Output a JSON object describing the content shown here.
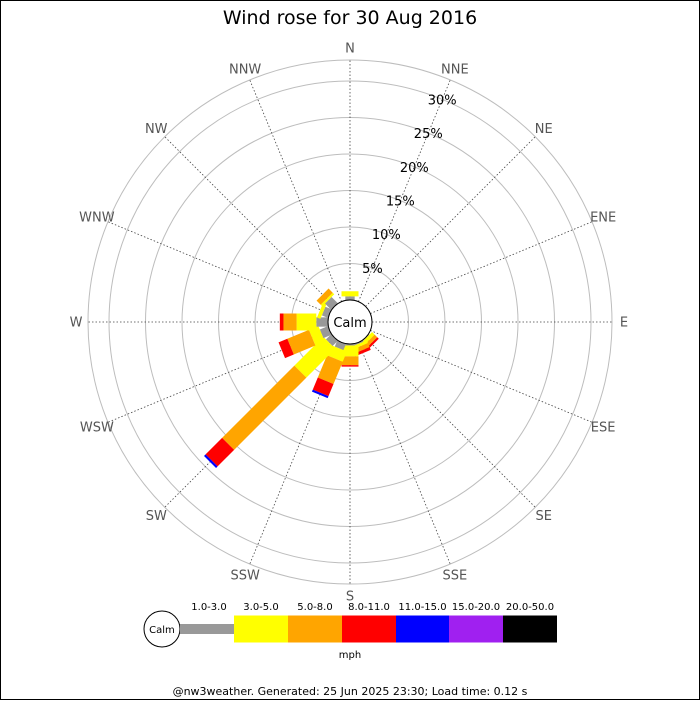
{
  "chart_data": {
    "type": "windrose",
    "title": "Wind rose for 30 Aug 2016",
    "directions": [
      "N",
      "NNE",
      "NE",
      "ENE",
      "E",
      "ESE",
      "SE",
      "SSE",
      "S",
      "SSW",
      "SW",
      "WSW",
      "W",
      "WNW",
      "NW",
      "NNW"
    ],
    "rings_percent": [
      5,
      10,
      15,
      20,
      25,
      30
    ],
    "ring_labels": [
      "5%",
      "10%",
      "15%",
      "20%",
      "25%",
      "30%"
    ],
    "calm_label": "Calm",
    "unit": "mph",
    "speed_bins": [
      {
        "label": "1.0-3.0",
        "color": "#999999"
      },
      {
        "label": "3.0-5.0",
        "color": "#ffff00"
      },
      {
        "label": "5.0-8.0",
        "color": "#ffa500"
      },
      {
        "label": "8.0-11.0",
        "color": "#ff0000"
      },
      {
        "label": "11.0-15.0",
        "color": "#0000ff"
      },
      {
        "label": "15.0-20.0",
        "color": "#a020f0"
      },
      {
        "label": "20.0-50.0",
        "color": "#000000"
      }
    ],
    "series": [
      {
        "direction": "N",
        "values": [
          0.5,
          0.7,
          0,
          0,
          0,
          0,
          0
        ]
      },
      {
        "direction": "NNE",
        "values": [
          0,
          0,
          0,
          0,
          0,
          0,
          0
        ]
      },
      {
        "direction": "NE",
        "values": [
          0,
          0,
          0,
          0,
          0,
          0,
          0
        ]
      },
      {
        "direction": "ENE",
        "values": [
          0,
          0,
          0,
          0,
          0,
          0,
          0
        ]
      },
      {
        "direction": "E",
        "values": [
          0,
          0,
          0,
          0,
          0,
          0,
          0
        ]
      },
      {
        "direction": "ESE",
        "values": [
          0,
          0,
          0,
          0,
          0,
          0,
          0
        ]
      },
      {
        "direction": "SE",
        "values": [
          0.1,
          0.5,
          0.5,
          0.3,
          0,
          0,
          0
        ]
      },
      {
        "direction": "SSE",
        "values": [
          0.2,
          0.4,
          0.6,
          0.4,
          0,
          0,
          0
        ]
      },
      {
        "direction": "S",
        "values": [
          0.2,
          1.5,
          1.2,
          0.2,
          0,
          0,
          0
        ]
      },
      {
        "direction": "SSW",
        "values": [
          0.9,
          1.5,
          3.3,
          1.8,
          0.3,
          0,
          0
        ]
      },
      {
        "direction": "SW",
        "values": [
          1.0,
          5.6,
          14.0,
          3.2,
          0.3,
          0,
          0
        ]
      },
      {
        "direction": "WSW",
        "values": [
          1.2,
          1.4,
          3.2,
          1.3,
          0,
          0,
          0
        ]
      },
      {
        "direction": "W",
        "values": [
          1.6,
          2.7,
          1.8,
          0.5,
          0,
          0,
          0
        ]
      },
      {
        "direction": "WNW",
        "values": [
          0.9,
          0.5,
          0,
          0,
          0,
          0,
          0
        ]
      },
      {
        "direction": "NW",
        "values": [
          1.2,
          0.3,
          0.8,
          0,
          0,
          0,
          0
        ]
      },
      {
        "direction": "NNW",
        "values": [
          0,
          0,
          0,
          0,
          0,
          0,
          0
        ]
      }
    ],
    "grid": true,
    "legend_position": "bottom"
  },
  "footer": "@nw3weather. Generated: 25 Jun 2025 23:30; Load time: 0.12 s"
}
